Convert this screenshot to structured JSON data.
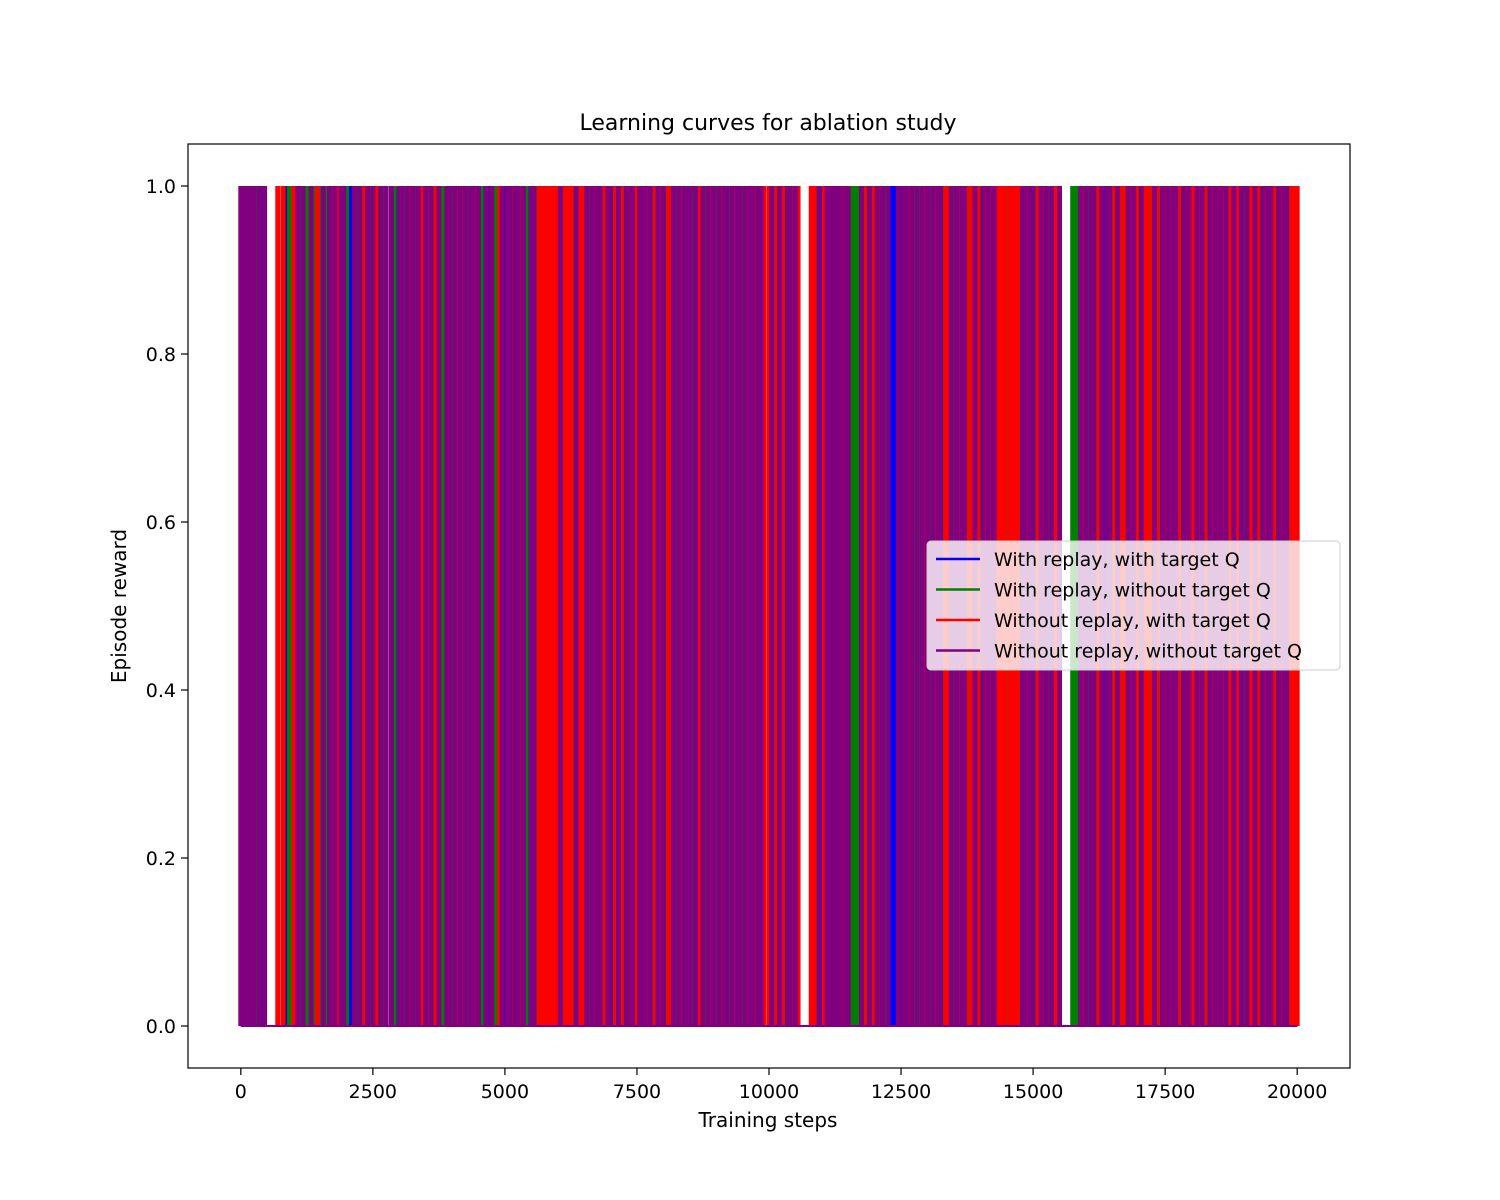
{
  "chart_data": {
    "type": "line",
    "title": "Learning curves for ablation study",
    "xlabel": "Training steps",
    "ylabel": "Episode reward",
    "xlim": [
      -1000,
      21000
    ],
    "ylim": [
      -0.05,
      1.05
    ],
    "x_ticks": [
      0,
      2500,
      5000,
      7500,
      10000,
      12500,
      15000,
      17500,
      20000
    ],
    "x_tick_labels": [
      "0",
      "2500",
      "5000",
      "7500",
      "10000",
      "12500",
      "15000",
      "17500",
      "20000"
    ],
    "y_ticks": [
      0.0,
      0.2,
      0.4,
      0.6,
      0.8,
      1.0
    ],
    "y_tick_labels": [
      "0.0",
      "0.2",
      "0.4",
      "0.6",
      "0.8",
      "1.0"
    ],
    "grid": false,
    "legend_position": "center-right",
    "x_range": [
      0,
      20000
    ],
    "series": [
      {
        "name": "With replay, with target Q",
        "color": "#0000ff",
        "reward_steps": [
          10,
          80,
          130,
          200,
          260,
          330,
          400,
          850,
          900,
          960,
          1020,
          1100,
          1200,
          1290,
          2060,
          2100,
          2630,
          2940,
          2980,
          3400,
          3520,
          4200,
          4260,
          4320,
          4380,
          4600,
          4670,
          4720,
          5000,
          5400,
          5450,
          6120,
          6370,
          7450,
          8150,
          8590,
          8650,
          9270,
          9370,
          9460,
          11000,
          12300,
          12370,
          12440,
          12510,
          12590,
          13870,
          14290,
          14360,
          16330,
          16410,
          18900,
          19720,
          19780
        ]
      },
      {
        "name": "With replay, without target Q",
        "color": "#008000",
        "reward_steps": [
          20,
          150,
          300,
          920,
          1050,
          1150,
          1250,
          1400,
          1520,
          1600,
          2000,
          2200,
          2300,
          2450,
          2600,
          2700,
          2900,
          3100,
          3300,
          3450,
          3650,
          3800,
          3850,
          4000,
          4300,
          4550,
          4800,
          4850,
          5080,
          5230,
          5400,
          5600,
          5900,
          6100,
          6300,
          6600,
          6850,
          7050,
          7250,
          7800,
          8050,
          8250,
          8550,
          8800,
          9000,
          9250,
          9500,
          10100,
          10300,
          10900,
          11550,
          11600,
          11650,
          11700,
          11800,
          11950,
          12200,
          12750,
          12850,
          13050,
          13300,
          13500,
          13800,
          14000,
          14500,
          14750,
          15050,
          15300,
          15750,
          15800,
          15850,
          16050,
          16200,
          16500,
          16700,
          17000,
          17200,
          17400,
          17800,
          18000,
          18300,
          18700,
          19000,
          19300,
          19600,
          19850,
          19950
        ]
      },
      {
        "name": "Without replay, with target Q",
        "color": "#ff0000",
        "reward_steps": [
          700,
          800,
          1000,
          1450,
          1750,
          1850,
          2350,
          2550,
          3200,
          3450,
          3550,
          3700,
          4100,
          4200,
          4450,
          4900,
          5150,
          5300,
          5650,
          5700,
          5750,
          5800,
          5850,
          5900,
          5950,
          6000,
          6050,
          6150,
          6200,
          6250,
          6400,
          6450,
          6500,
          6700,
          6900,
          7100,
          7200,
          7350,
          7500,
          7700,
          7850,
          7950,
          8100,
          8350,
          8700,
          8900,
          9100,
          9350,
          9600,
          9750,
          9900,
          10000,
          10150,
          10250,
          10450,
          10550,
          10800,
          10850,
          11050,
          11400,
          11850,
          12000,
          12100,
          12650,
          12950,
          13150,
          13350,
          13400,
          13600,
          13750,
          13850,
          13950,
          14100,
          14200,
          14350,
          14400,
          14450,
          14550,
          14600,
          14650,
          14700,
          14900,
          15100,
          15200,
          15400,
          15450,
          15950,
          16250,
          16550,
          16650,
          16750,
          16850,
          16950,
          17100,
          17150,
          17250,
          17350,
          17500,
          17600,
          17750,
          17900,
          18000,
          18050,
          18150,
          18250,
          18400,
          18500,
          18600,
          18750,
          18850,
          19100,
          19150,
          19250,
          19400,
          19550,
          19700,
          19900,
          19950,
          20000
        ]
      },
      {
        "name": "Without replay, without target Q",
        "color": "#800080",
        "reward_steps": [
          0,
          50,
          100,
          180,
          250,
          350,
          450,
          1080,
          1180,
          1330,
          1560,
          1680,
          1780,
          1900,
          1950,
          2150,
          2250,
          2400,
          2500,
          2650,
          2750,
          2850,
          3000,
          3050,
          3150,
          3250,
          3350,
          3500,
          3600,
          3750,
          3900,
          3950,
          4050,
          4150,
          4250,
          4350,
          4400,
          4500,
          4650,
          4750,
          4950,
          5050,
          5100,
          5200,
          5250,
          5350,
          5500,
          5550,
          6050,
          6350,
          6550,
          6650,
          6750,
          6800,
          6950,
          7000,
          7150,
          7300,
          7400,
          7550,
          7600,
          7650,
          7750,
          7900,
          8000,
          8200,
          8300,
          8400,
          8450,
          8500,
          8600,
          8750,
          8850,
          8950,
          9050,
          9150,
          9200,
          9300,
          9400,
          9450,
          9550,
          9650,
          9700,
          9800,
          9850,
          10050,
          10200,
          10350,
          10400,
          10500,
          10950,
          11100,
          11150,
          11200,
          11250,
          11300,
          11350,
          11450,
          11500,
          11750,
          11900,
          12050,
          12150,
          12250,
          12450,
          12550,
          12600,
          12700,
          12800,
          12900,
          13000,
          13100,
          13200,
          13250,
          13450,
          13550,
          13650,
          13700,
          13900,
          14050,
          14150,
          14250,
          14800,
          14850,
          14950,
          15000,
          15150,
          15250,
          15350,
          15500,
          15900,
          16000,
          16100,
          16150,
          16300,
          16400,
          16450,
          16600,
          16800,
          16900,
          17050,
          17300,
          17450,
          17550,
          17650,
          17700,
          17850,
          17950,
          18100,
          18200,
          18350,
          18450,
          18550,
          18650,
          18800,
          18950,
          19050,
          19200,
          19350,
          19450,
          19500,
          19650,
          19750,
          19800
        ]
      }
    ]
  }
}
